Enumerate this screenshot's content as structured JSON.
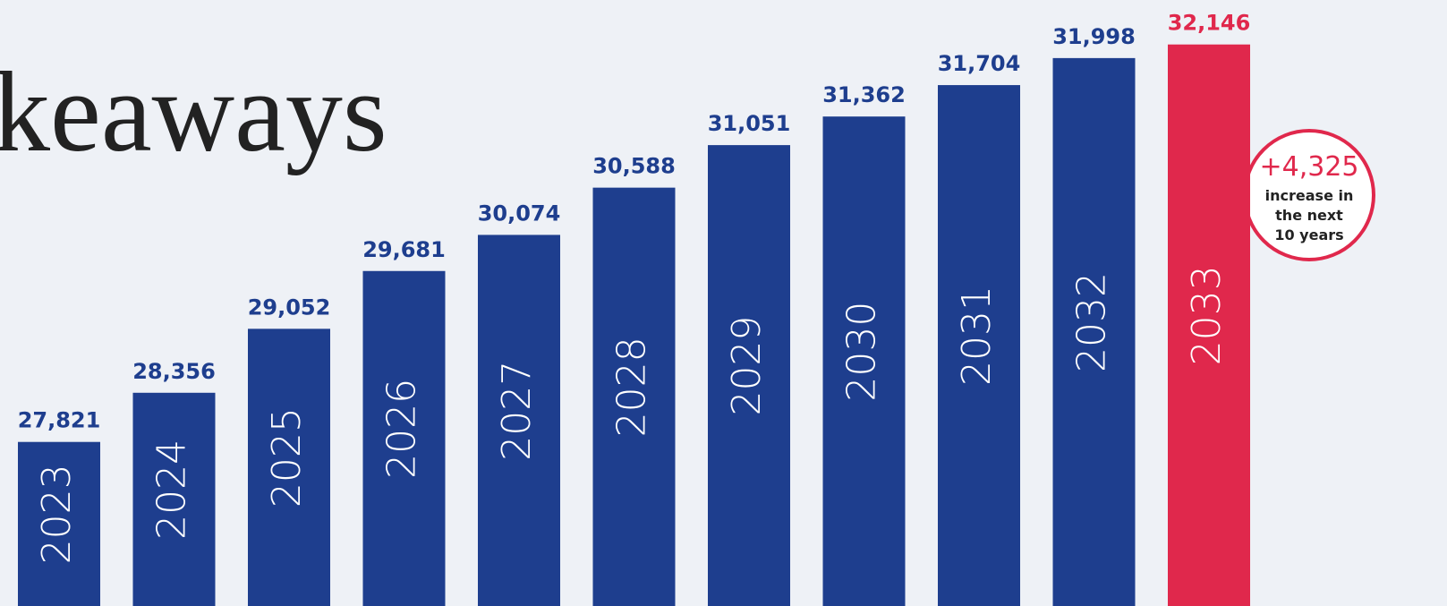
{
  "chart_data": {
    "type": "bar",
    "title": "keaways",
    "categories": [
      "2023",
      "2024",
      "2025",
      "2026",
      "2027",
      "2028",
      "2029",
      "2030",
      "2031",
      "2032",
      "2033"
    ],
    "values": [
      27821,
      28356,
      29052,
      29681,
      30074,
      30588,
      31051,
      31362,
      31704,
      31998,
      32146
    ],
    "value_labels": [
      "27,821",
      "28,356",
      "29,052",
      "29,681",
      "30,074",
      "30,588",
      "31,051",
      "31,362",
      "31,704",
      "31,998",
      "32,146"
    ],
    "colors": [
      "#1e3e8e",
      "#1e3e8e",
      "#1e3e8e",
      "#1e3e8e",
      "#1e3e8e",
      "#1e3e8e",
      "#1e3e8e",
      "#1e3e8e",
      "#1e3e8e",
      "#1e3e8e",
      "#e0284c"
    ],
    "ylim": [
      26250,
      32630
    ],
    "annotation": {
      "headline": "+4,325",
      "lines": [
        "increase in",
        "the next",
        "10 years"
      ]
    }
  }
}
